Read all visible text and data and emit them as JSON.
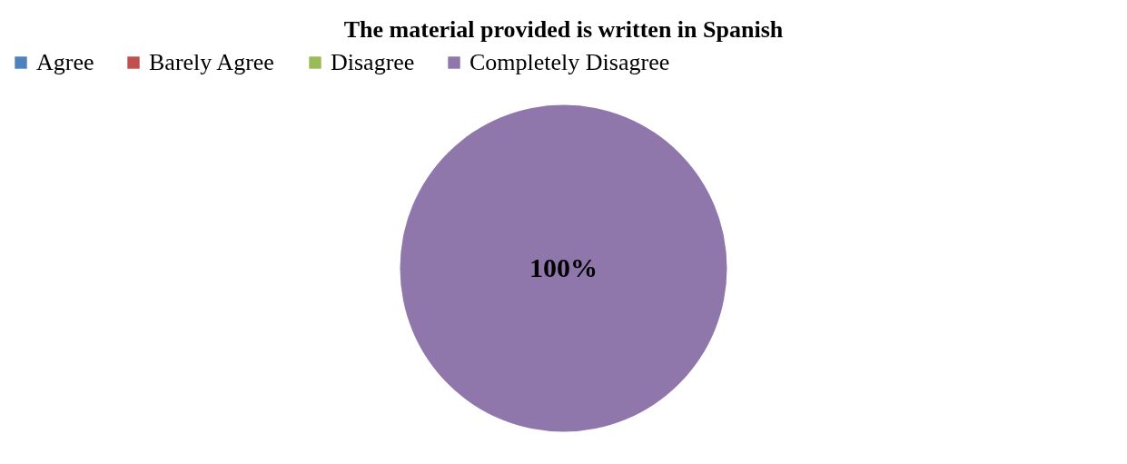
{
  "chart_data": {
    "type": "pie",
    "title": "The material provided is written in Spanish",
    "categories": [
      "Agree",
      "Barely Agree",
      "Disagree",
      "Completely Disagree"
    ],
    "values": [
      0,
      0,
      0,
      100
    ],
    "colors": [
      "#4f81bd",
      "#c0504d",
      "#9bbb59",
      "#8f77ab"
    ],
    "value_labels": [
      null,
      null,
      null,
      "100%"
    ],
    "legend": "top"
  }
}
